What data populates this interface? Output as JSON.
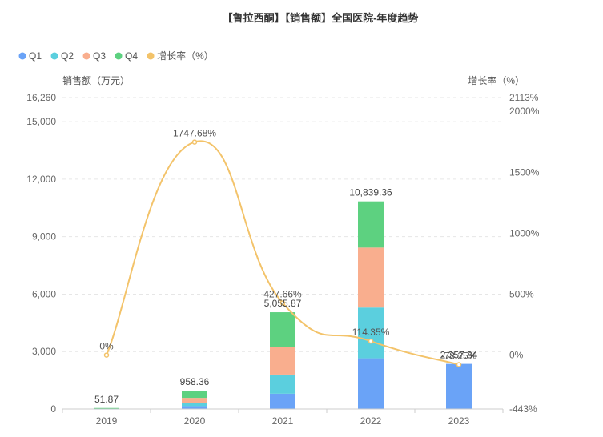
{
  "chart_data": {
    "type": "bar",
    "title": "【鲁拉西酮】【销售额】全国医院-年度趋势",
    "categories": [
      "2019",
      "2020",
      "2021",
      "2022",
      "2023"
    ],
    "series": [
      {
        "name": "Q1",
        "color": "#6aa3f7",
        "values": [
          10,
          150,
          800,
          2650,
          2357.34
        ]
      },
      {
        "name": "Q2",
        "color": "#5bcfde",
        "values": [
          12,
          180,
          1000,
          2650,
          0
        ]
      },
      {
        "name": "Q3",
        "color": "#f9ae8e",
        "values": [
          14,
          250,
          1450,
          3130,
          0
        ]
      },
      {
        "name": "Q4",
        "color": "#5dd180",
        "values": [
          15.87,
          378.36,
          1805.87,
          2409.36,
          0
        ]
      }
    ],
    "totals": [
      "51.87",
      "958.36",
      "5,055.87",
      "10,839.36",
      "2,357.34"
    ],
    "growth_rate": {
      "name": "增长率（%）",
      "color": "#f3c36a",
      "values": [
        0,
        1747.68,
        427.66,
        114.35,
        -78.25
      ],
      "labels": [
        "0%",
        "1747.68%",
        "427.66%",
        "114.35%",
        "-78.25%"
      ]
    },
    "ylabel": "销售额（万元）",
    "y2label": "增长率（%）",
    "ylim": [
      0,
      16260
    ],
    "y2lim": [
      -443,
      2113
    ],
    "yticks": [
      "0",
      "3,000",
      "6,000",
      "9,000",
      "12,000",
      "15,000",
      "16,260"
    ],
    "ytick_values": [
      0,
      3000,
      6000,
      9000,
      12000,
      15000,
      16260
    ],
    "y2ticks": [
      "-443%",
      "0%",
      "500%",
      "1000%",
      "1500%",
      "2000%",
      "2113%"
    ],
    "y2tick_values": [
      -443,
      0,
      500,
      1000,
      1500,
      2000,
      2113
    ],
    "grid": true,
    "legend_position": "top-left"
  }
}
